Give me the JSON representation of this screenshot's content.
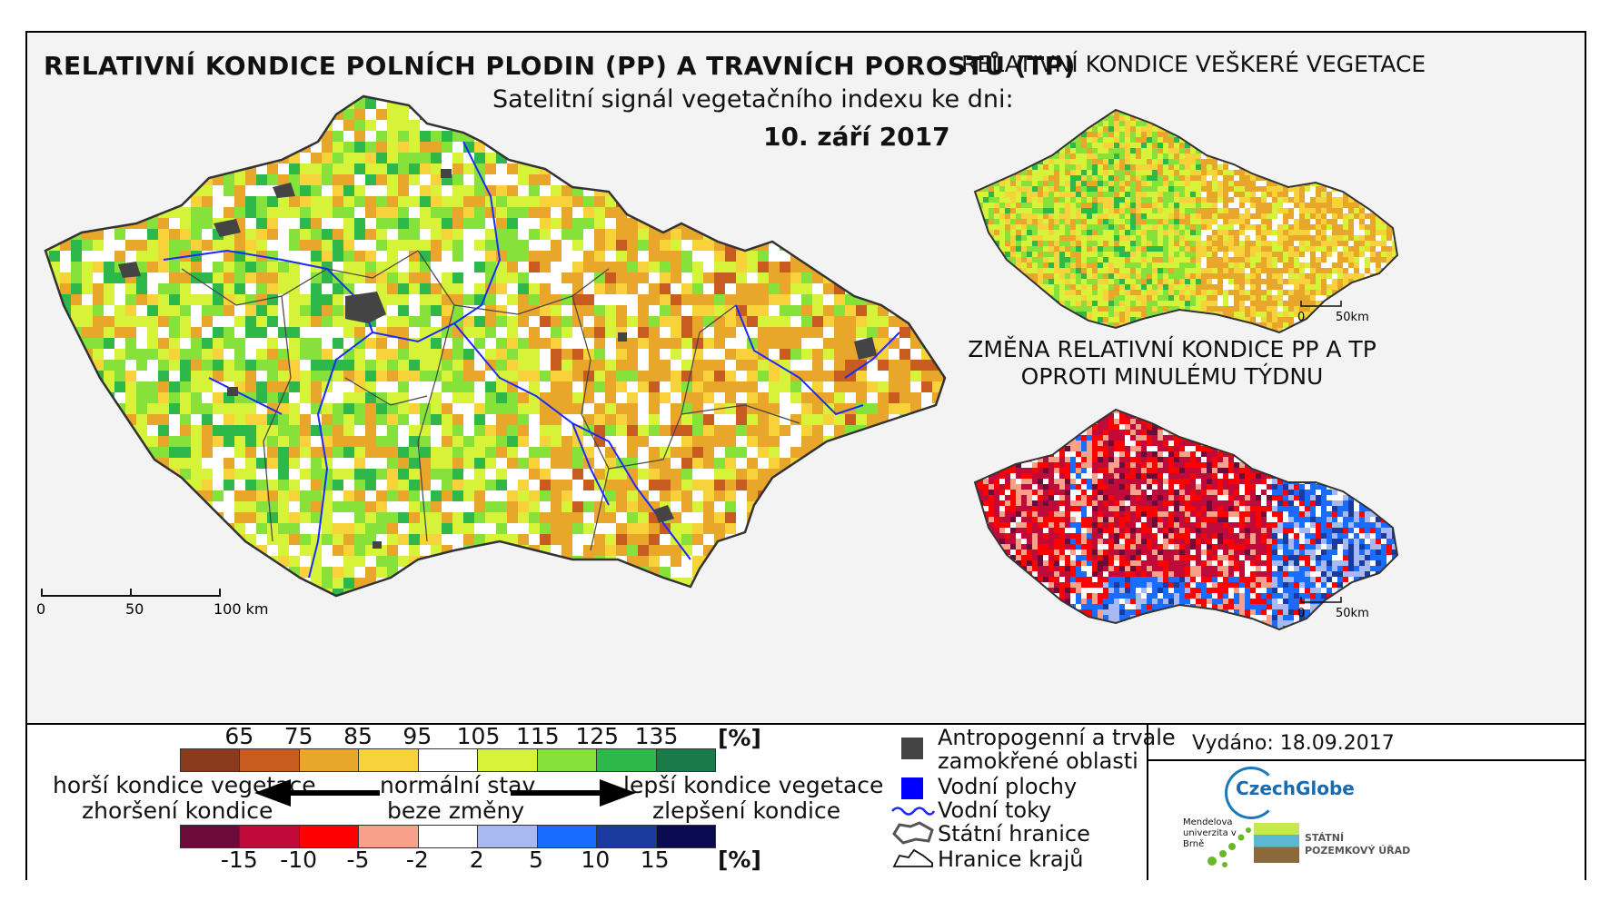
{
  "title": "RELATIVNÍ KONDICE POLNÍCH PLODIN (PP) A TRAVNÍCH POROSTŮ (TP)",
  "subtitle": "Satelitní signál vegetačního indexu ke dni:",
  "date": "10. září 2017",
  "inset_top_title": "RELATIVNÍ KONDICE VEŠKERÉ VEGETACE",
  "inset_bottom_title_line1": "ZMĚNA RELATIVNÍ KONDICE PP A TP",
  "inset_bottom_title_line2": "OPROTI MINULÉMU TÝDNU",
  "main_scale": {
    "l0": "0",
    "l1": "50",
    "l2": "100 km"
  },
  "inset_scale": {
    "l0": "0",
    "l1": "50km"
  },
  "legend": {
    "condition_ticks": [
      "65",
      "75",
      "85",
      "95",
      "105",
      "115",
      "125",
      "135"
    ],
    "condition_unit": "[%]",
    "condition_colors": [
      "#8b3a1e",
      "#c85c20",
      "#e8a62a",
      "#f7d23a",
      "#ffffff",
      "#d6f33a",
      "#86e23a",
      "#2fb84a",
      "#1a7a4a"
    ],
    "change_ticks": [
      "-15",
      "-10",
      "-5",
      "-2",
      "2",
      "5",
      "10",
      "15"
    ],
    "change_unit": "[%]",
    "change_colors": [
      "#6e0a3a",
      "#c00a3a",
      "#ff0000",
      "#f7a18a",
      "#ffffff",
      "#a8b8f0",
      "#1a6cff",
      "#1a3aa0",
      "#0a0a50"
    ],
    "worse_line1": "horší kondice vegetace",
    "worse_line2": "zhoršení kondice",
    "normal_line1": "normální stav",
    "normal_line2": "beze změny",
    "better_line1": "lepší kondice vegetace",
    "better_line2": "zlepšení kondice"
  },
  "map_legend": {
    "anthropogenic_line1": "Antropogenní a trvale",
    "anthropogenic_line2": "zamokřené oblasti",
    "water_bodies": "Vodní plochy",
    "water_courses": "Vodní toky",
    "state_border": "Státní hranice",
    "region_border": "Hranice krajů"
  },
  "issued": "Vydáno: 18.09.2017",
  "brand": {
    "czechglobe": "CzechGlobe",
    "mendelu": "Mendelova univerzita v Brně",
    "spu_line1": "STÁTNÍ",
    "spu_line2": "POZEMKOVÝ ÚŘAD"
  }
}
